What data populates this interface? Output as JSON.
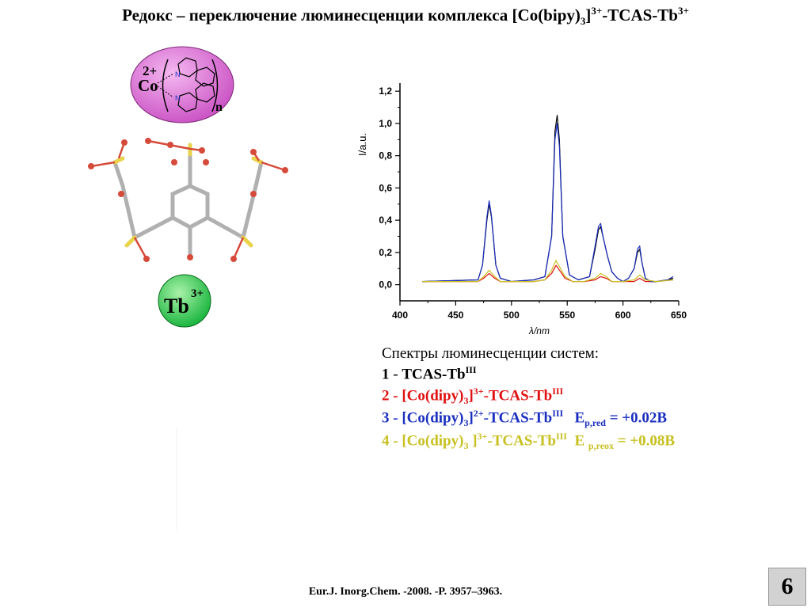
{
  "title": {
    "pre": "Редокс – переключение люминесценции комплекса [Co(bipy)",
    "sub": "3",
    "mid": "]",
    "sup1": "3+",
    "mid2": "-TCAS-Tb",
    "sup2": "3+"
  },
  "molecule": {
    "co_charge": "2+",
    "co_label": "Co",
    "n_label": "N",
    "n_sub": "n",
    "tb_label": "Tb",
    "tb_charge": "3+"
  },
  "chart_data": {
    "type": "line",
    "xlabel": "λ/nm",
    "ylabel": "I/a.u.",
    "xlim": [
      400,
      650
    ],
    "ylim": [
      -0.1,
      1.25
    ],
    "x_ticks": [
      "400",
      "450",
      "500",
      "550",
      "600",
      "650"
    ],
    "y_ticks": [
      "0,0",
      "0,2",
      "0,4",
      "0,6",
      "0,8",
      "1,0",
      "1,2"
    ],
    "grid": false,
    "legend": "none",
    "series": [
      {
        "color": "#000000",
        "x": [
          420,
          470,
          474,
          478,
          480,
          482,
          486,
          490,
          500,
          520,
          530,
          536,
          539,
          541,
          543,
          546,
          552,
          560,
          570,
          575,
          578,
          580,
          582,
          586,
          590,
          595,
          600,
          605,
          610,
          613,
          615,
          617,
          620,
          625,
          630,
          640,
          645
        ],
        "y": [
          0.02,
          0.03,
          0.12,
          0.4,
          0.5,
          0.42,
          0.12,
          0.04,
          0.02,
          0.03,
          0.05,
          0.3,
          0.95,
          1.05,
          0.9,
          0.3,
          0.06,
          0.03,
          0.05,
          0.22,
          0.34,
          0.36,
          0.3,
          0.18,
          0.08,
          0.04,
          0.02,
          0.04,
          0.1,
          0.2,
          0.22,
          0.14,
          0.04,
          0.02,
          0.02,
          0.03,
          0.04
        ]
      },
      {
        "color": "#e01010",
        "x": [
          420,
          470,
          475,
          480,
          485,
          490,
          500,
          520,
          530,
          536,
          540,
          544,
          548,
          555,
          565,
          575,
          580,
          585,
          590,
          600,
          610,
          615,
          620,
          630,
          645
        ],
        "y": [
          0.02,
          0.02,
          0.04,
          0.07,
          0.04,
          0.02,
          0.02,
          0.02,
          0.03,
          0.07,
          0.12,
          0.08,
          0.04,
          0.02,
          0.02,
          0.03,
          0.05,
          0.04,
          0.02,
          0.02,
          0.02,
          0.04,
          0.02,
          0.02,
          0.03
        ]
      },
      {
        "color": "#1a2fc0",
        "x": [
          420,
          470,
          474,
          478,
          480,
          482,
          486,
          490,
          500,
          520,
          530,
          536,
          539,
          541,
          543,
          546,
          552,
          560,
          570,
          575,
          578,
          580,
          582,
          586,
          590,
          595,
          600,
          605,
          610,
          613,
          615,
          617,
          620,
          625,
          630,
          640,
          645
        ],
        "y": [
          0.02,
          0.03,
          0.12,
          0.42,
          0.52,
          0.43,
          0.12,
          0.04,
          0.02,
          0.03,
          0.05,
          0.3,
          0.9,
          1.0,
          0.86,
          0.3,
          0.06,
          0.03,
          0.05,
          0.24,
          0.36,
          0.38,
          0.3,
          0.18,
          0.08,
          0.04,
          0.02,
          0.04,
          0.1,
          0.22,
          0.24,
          0.14,
          0.04,
          0.02,
          0.02,
          0.03,
          0.05
        ]
      },
      {
        "color": "#c8c020",
        "x": [
          420,
          470,
          475,
          480,
          485,
          490,
          500,
          520,
          530,
          536,
          540,
          544,
          548,
          555,
          565,
          575,
          580,
          585,
          590,
          600,
          610,
          615,
          620,
          630,
          645
        ],
        "y": [
          0.02,
          0.02,
          0.05,
          0.09,
          0.05,
          0.02,
          0.02,
          0.02,
          0.03,
          0.09,
          0.15,
          0.1,
          0.05,
          0.02,
          0.02,
          0.04,
          0.07,
          0.05,
          0.02,
          0.02,
          0.03,
          0.06,
          0.03,
          0.02,
          0.03
        ]
      }
    ]
  },
  "caption": {
    "heading": "Спектры люминесценции систем:",
    "l1_num": "1",
    "l1_dash": " - ",
    "l1_text": "TCAS-Tb",
    "l1_sup": "III",
    "l2_pre": "2 - [Co(dipy)",
    "l2_sub": "3",
    "l2_mid": "]",
    "l2_sup": "3+",
    "l2_post": "-TCAS-Tb",
    "l2_sup2": "III",
    "l3_pre": "3 - [Co(dipy)",
    "l3_sub": "3",
    "l3_mid": "]",
    "l3_sup": "2+",
    "l3_post": "-TCAS-Tb",
    "l3_sup2": "III",
    "l3_e": "E",
    "l3_esub": "p,red",
    "l3_eval": " = +0.02B",
    "l4_pre": "4 - [Co(dipy)",
    "l4_sub": "3",
    "l4_mid": " ]",
    "l4_sup": "3+",
    "l4_post": "-TCAS-Tb",
    "l4_sup2": "III",
    "l4_e": "E ",
    "l4_esub": "p,reox",
    "l4_eval": " = +0.08B"
  },
  "reference": "Eur.J. Inorg.Chem. -2008. -P. 3957–3963.",
  "slide_number": "6"
}
